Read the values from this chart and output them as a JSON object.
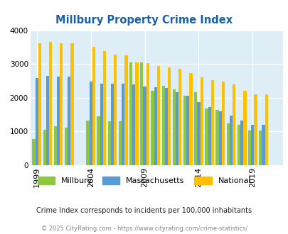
{
  "title": "Millbury Property Crime Index",
  "years": [
    1999,
    2000,
    2001,
    2002,
    2004,
    2005,
    2006,
    2007,
    2008,
    2009,
    2010,
    2011,
    2012,
    2013,
    2014,
    2015,
    2016,
    2017,
    2018,
    2019,
    2020,
    2021
  ],
  "millbury": [
    780,
    1040,
    1160,
    1120,
    1320,
    1440,
    1300,
    1300,
    3040,
    3040,
    2200,
    2350,
    2240,
    2050,
    2160,
    1680,
    1640,
    1240,
    1200,
    1020,
    1020,
    0
  ],
  "massachusetts": [
    2580,
    2640,
    2620,
    2620,
    2480,
    2410,
    2420,
    2420,
    2400,
    2330,
    2320,
    2280,
    2170,
    2060,
    1860,
    1720,
    1600,
    1460,
    1320,
    1190,
    1190,
    0
  ],
  "national": [
    3620,
    3660,
    3620,
    3620,
    3510,
    3380,
    3290,
    3250,
    3040,
    3030,
    2940,
    2900,
    2870,
    2730,
    2610,
    2520,
    2480,
    2400,
    2210,
    2100,
    2100,
    0
  ],
  "bar_colors": {
    "millbury": "#8dc63f",
    "massachusetts": "#5b9bd5",
    "national": "#ffc000"
  },
  "ylim": [
    0,
    4000
  ],
  "yticks": [
    0,
    1000,
    2000,
    3000,
    4000
  ],
  "xtick_positions": [
    1999,
    2004,
    2009,
    2014,
    2019
  ],
  "bg_color": "#ddeef6",
  "fig_bg": "#ffffff",
  "subtitle": "Crime Index corresponds to incidents per 100,000 inhabitants",
  "footer": "© 2025 CityRating.com - https://www.cityrating.com/crime-statistics/",
  "title_color": "#1861a8",
  "subtitle_color": "#222222",
  "footer_color": "#888888",
  "legend_labels": [
    "Millbury",
    "Massachusetts",
    "National"
  ],
  "bar_width": 0.28
}
